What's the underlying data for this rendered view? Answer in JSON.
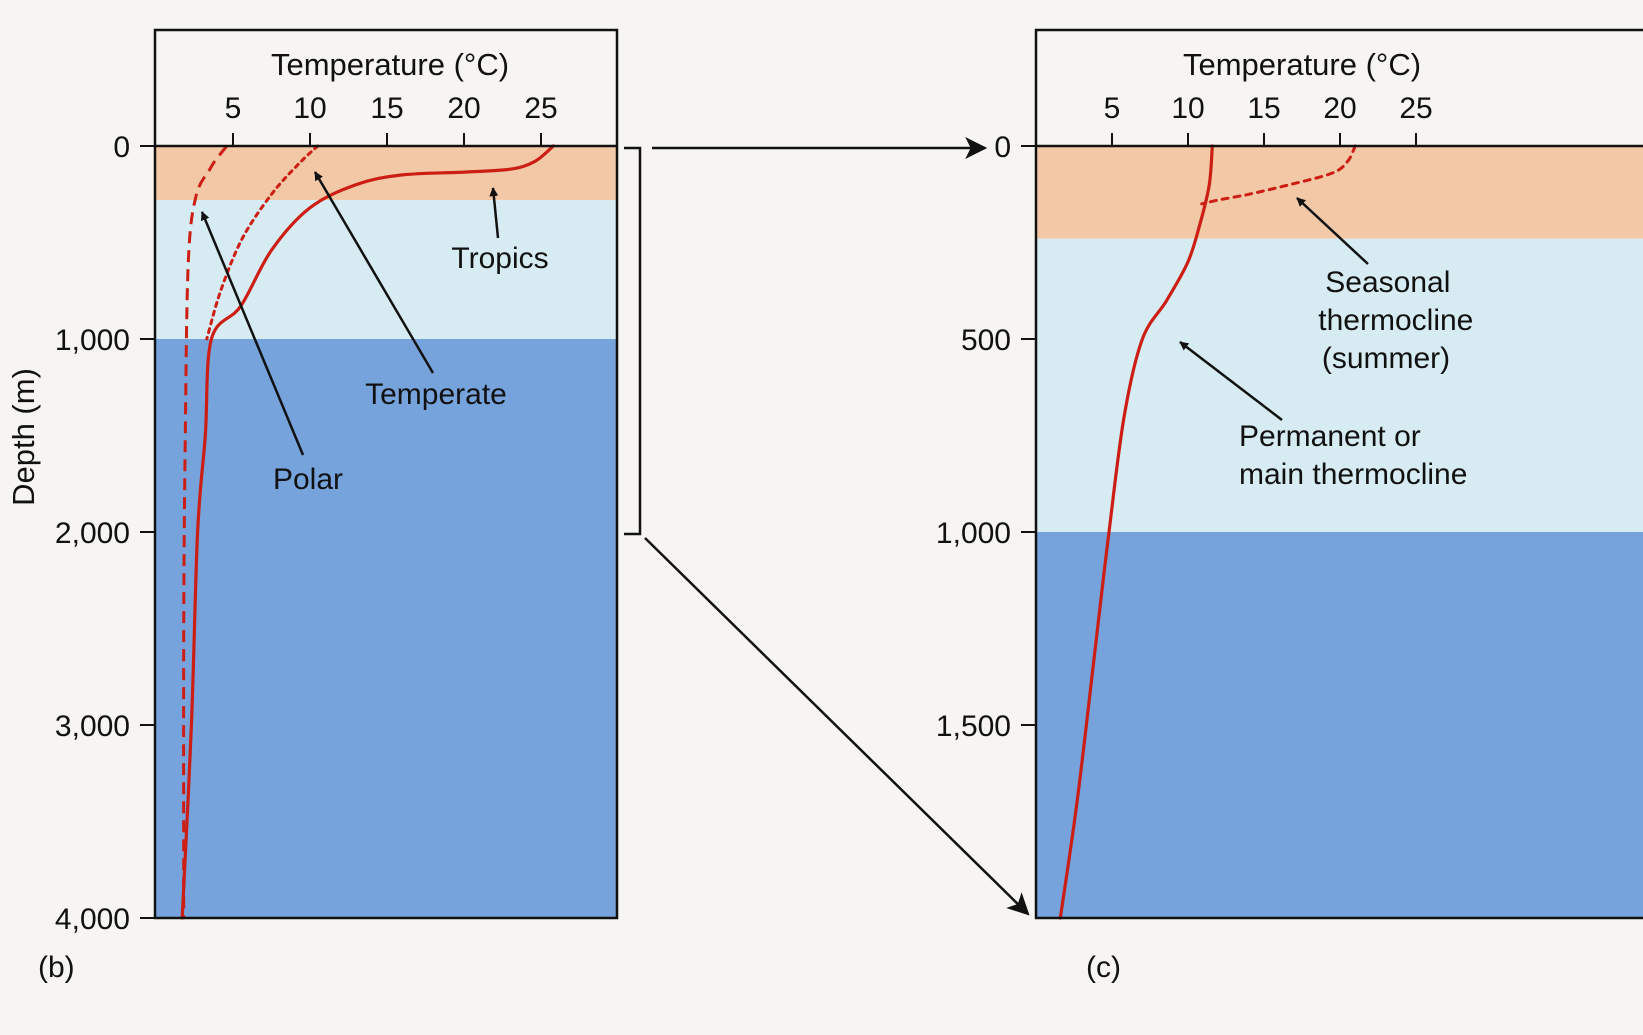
{
  "colors": {
    "surface_layer": "#f2c8a6",
    "thermocline_layer": "#d6ecf2",
    "deep_layer": "#77a3dc",
    "curve": "#cc1e14",
    "ink": "#111111"
  },
  "chart_data": [
    {
      "type": "line",
      "panel_label": "(b)",
      "xlabel": "Temperature (°C)",
      "ylabel": "Depth (m)",
      "x_axis_position": "top",
      "y_inverted": true,
      "xlim": [
        0,
        30
      ],
      "ylim": [
        0,
        4000
      ],
      "x_ticks": [
        5,
        10,
        15,
        20,
        25
      ],
      "x_tick_labels": [
        "5",
        "10",
        "15",
        "20",
        "25"
      ],
      "y_ticks": [
        0,
        1000,
        2000,
        3000,
        4000
      ],
      "y_tick_labels": [
        "0",
        "1,000",
        "2,000",
        "3,000",
        "4,000"
      ],
      "layers": [
        {
          "name": "surface",
          "depth_range": [
            0,
            280
          ]
        },
        {
          "name": "thermocline",
          "depth_range": [
            280,
            1000
          ]
        },
        {
          "name": "deep",
          "depth_range": [
            1000,
            4000
          ]
        }
      ],
      "series": [
        {
          "name": "Tropics",
          "style": "solid",
          "points": [
            [
              25.8,
              0
            ],
            [
              24.6,
              80
            ],
            [
              23,
              120
            ],
            [
              20,
              135
            ],
            [
              16,
              150
            ],
            [
              13,
              200
            ],
            [
              10,
              320
            ],
            [
              7.5,
              540
            ],
            [
              5.5,
              830
            ],
            [
              3.6,
              1000
            ],
            [
              3.2,
              1500
            ],
            [
              2.7,
              2000
            ],
            [
              2.3,
              3000
            ],
            [
              1.7,
              4000
            ]
          ]
        },
        {
          "name": "Temperate",
          "style": "dotted",
          "points": [
            [
              10.5,
              0
            ],
            [
              9.3,
              90
            ],
            [
              7.5,
              250
            ],
            [
              5.6,
              480
            ],
            [
              4.2,
              750
            ],
            [
              3.3,
              1000
            ]
          ]
        },
        {
          "name": "Polar",
          "style": "dashed",
          "points": [
            [
              4.6,
              0
            ],
            [
              3.9,
              70
            ],
            [
              3.5,
              120
            ],
            [
              2.6,
              260
            ],
            [
              2.1,
              600
            ],
            [
              1.9,
              1500
            ],
            [
              1.8,
              2500
            ],
            [
              1.8,
              4000
            ]
          ]
        }
      ],
      "annotations": [
        {
          "text": "Tropics",
          "target": [
            22.3,
            170
          ]
        },
        {
          "text": "Temperate",
          "target": [
            10.1,
            130
          ]
        },
        {
          "text": "Polar",
          "target": [
            2.9,
            330
          ]
        }
      ]
    },
    {
      "type": "line",
      "panel_label": "(c)",
      "xlabel": "Temperature (°C)",
      "x_axis_position": "top",
      "y_inverted": true,
      "xlim": [
        0,
        35
      ],
      "ylim": [
        0,
        2000
      ],
      "x_ticks": [
        5,
        10,
        15,
        20,
        25
      ],
      "x_tick_labels": [
        "5",
        "10",
        "15",
        "20",
        "25"
      ],
      "y_ticks": [
        0,
        500,
        1000,
        1500
      ],
      "y_tick_labels": [
        "0",
        "500",
        "1,000",
        "1,500"
      ],
      "layers": [
        {
          "name": "surface",
          "depth_range": [
            0,
            240
          ]
        },
        {
          "name": "thermocline",
          "depth_range": [
            240,
            1000
          ]
        },
        {
          "name": "deep",
          "depth_range": [
            1000,
            2000
          ]
        }
      ],
      "series": [
        {
          "name": "Permanent or main thermocline",
          "style": "solid",
          "points": [
            [
              11.6,
              0
            ],
            [
              11.4,
              100
            ],
            [
              10.8,
              200
            ],
            [
              10,
              300
            ],
            [
              8.6,
              400
            ],
            [
              7,
              500
            ],
            [
              5.8,
              700
            ],
            [
              4.8,
              1000
            ],
            [
              3.9,
              1300
            ],
            [
              2.7,
              1700
            ],
            [
              1.6,
              2000
            ]
          ]
        },
        {
          "name": "Seasonal thermocline (summer)",
          "style": "dotted",
          "points": [
            [
              21,
              0
            ],
            [
              20.5,
              40
            ],
            [
              19.5,
              70
            ],
            [
              16.7,
              100
            ],
            [
              14,
              125
            ],
            [
              12,
              140
            ],
            [
              10.9,
              150
            ]
          ]
        }
      ],
      "annotations": [
        {
          "text": [
            "Seasonal",
            "thermocline",
            "(summer)"
          ],
          "target": [
            17,
            120
          ]
        },
        {
          "text": [
            "Permanent or",
            "main thermocline"
          ],
          "target": [
            9.3,
            490
          ]
        }
      ]
    }
  ]
}
